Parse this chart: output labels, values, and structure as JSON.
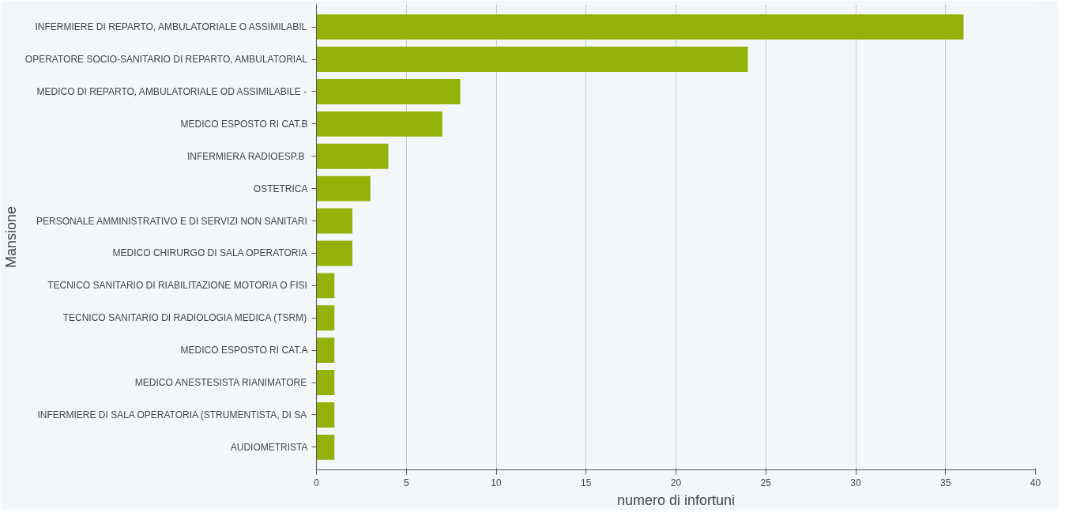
{
  "chart_data": {
    "type": "bar",
    "orientation": "horizontal",
    "xlabel": "numero di infortuni",
    "ylabel": "Mansione",
    "categories": [
      "INFERMIERE DI REPARTO, AMBULATORIALE O ASSIMILABIL",
      "OPERATORE SOCIO-SANITARIO DI REPARTO, AMBULATORIAL",
      "MEDICO DI REPARTO, AMBULATORIALE OD ASSIMILABILE -",
      "MEDICO ESPOSTO RI CAT.B",
      "INFERMIERA  RADIOESP.B",
      "OSTETRICA",
      "PERSONALE AMMINISTRATIVO E DI SERVIZI NON SANITARI",
      "MEDICO CHIRURGO DI SALA OPERATORIA",
      "TECNICO SANITARIO DI RIABILITAZIONE MOTORIA O FISI",
      "TECNICO SANITARIO DI RADIOLOGIA MEDICA (TSRM)",
      "MEDICO ESPOSTO RI CAT.A",
      "MEDICO ANESTESISTA RIANIMATORE",
      "INFERMIERE DI SALA OPERATORIA (STRUMENTISTA, DI SA",
      "AUDIOMETRISTA"
    ],
    "values": [
      36,
      24,
      8,
      7,
      4,
      3,
      2,
      2,
      1,
      1,
      1,
      1,
      1,
      1
    ],
    "color": "#94b10a",
    "xlim": [
      0,
      40
    ],
    "xticks": [
      0,
      5,
      10,
      15,
      20,
      25,
      30,
      35,
      40
    ],
    "grid": "x"
  }
}
